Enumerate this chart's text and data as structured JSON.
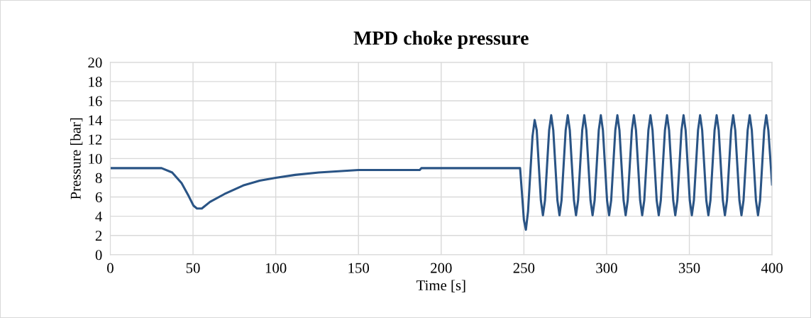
{
  "chart_data": {
    "type": "line",
    "title": "MPD choke pressure",
    "xlabel": "Time [s]",
    "ylabel": "Pressure [bar]",
    "xlim": [
      0,
      400
    ],
    "xticks": [
      0,
      50,
      100,
      150,
      200,
      250,
      300,
      350,
      400
    ],
    "ylim": [
      0,
      20
    ],
    "yticks": [
      0,
      2,
      4,
      6,
      8,
      10,
      12,
      14,
      16,
      18,
      20
    ],
    "grid": true,
    "marker": "none",
    "line_style": "solid",
    "series": [
      {
        "color": "#2a5485",
        "x": [
          0,
          31,
          37.4,
          43.1,
          47.4,
          50.3,
          52.4,
          55.3,
          60.3,
          68.9,
          80.3,
          90.3,
          100,
          111.7,
          126,
          150,
          187,
          188,
          247.7,
          249,
          250,
          251.2,
          252.5,
          253.8,
          255.2,
          256.5,
          257.75,
          259,
          260.25,
          261.5,
          262.75,
          264,
          265.25,
          266.5,
          267.75,
          269,
          270.25,
          271.5,
          272.75,
          274,
          275.25,
          276.5,
          277.75,
          279,
          280.25,
          281.5,
          282.75,
          284,
          285.25,
          286.5,
          287.75,
          289,
          290.25,
          291.5,
          292.75,
          294,
          295.25,
          296.5,
          297.75,
          299,
          300.25,
          301.5,
          302.75,
          304,
          305.25,
          306.5,
          307.75,
          309,
          310.25,
          311.5,
          312.75,
          314,
          315.25,
          316.5,
          317.75,
          319,
          320.25,
          321.5,
          322.75,
          324,
          325.25,
          326.5,
          327.75,
          329,
          330.25,
          331.5,
          332.75,
          334,
          335.25,
          336.5,
          337.75,
          339,
          340.25,
          341.5,
          342.75,
          344,
          345.25,
          346.5,
          347.75,
          349,
          350.25,
          351.5,
          352.75,
          354,
          355.25,
          356.5,
          357.75,
          359,
          360.25,
          361.5,
          362.75,
          364,
          365.25,
          366.5,
          367.75,
          369,
          370.25,
          371.5,
          372.75,
          374,
          375.25,
          376.5,
          377.75,
          379,
          380.25,
          381.5,
          382.75,
          384,
          385.25,
          386.5,
          387.75,
          389,
          390.25,
          391.5,
          392.75,
          394,
          395.25,
          396.5,
          397.75,
          400
        ],
        "values": [
          9,
          9,
          8.55,
          7.44,
          6.09,
          5.1,
          4.8,
          4.8,
          5.5,
          6.3,
          7.2,
          7.7,
          8.0,
          8.3,
          8.55,
          8.8,
          8.8,
          9.0,
          9.0,
          6.0,
          3.6,
          2.6,
          4.5,
          8.3,
          12.3,
          14.0,
          12.95,
          9.3,
          5.65,
          4.1,
          5.65,
          9.3,
          12.95,
          14.5,
          12.95,
          9.3,
          5.65,
          4.1,
          5.65,
          9.3,
          12.95,
          14.5,
          12.95,
          9.3,
          5.65,
          4.1,
          5.65,
          9.3,
          12.95,
          14.5,
          12.95,
          9.3,
          5.65,
          4.1,
          5.65,
          9.3,
          12.95,
          14.5,
          12.95,
          9.3,
          5.65,
          4.1,
          5.65,
          9.3,
          12.95,
          14.5,
          12.95,
          9.3,
          5.65,
          4.1,
          5.65,
          9.3,
          12.95,
          14.5,
          12.95,
          9.3,
          5.65,
          4.1,
          5.65,
          9.3,
          12.95,
          14.5,
          12.95,
          9.3,
          5.65,
          4.1,
          5.65,
          9.3,
          12.95,
          14.5,
          12.95,
          9.3,
          5.65,
          4.1,
          5.65,
          9.3,
          12.95,
          14.5,
          12.95,
          9.3,
          5.65,
          4.1,
          5.65,
          9.3,
          12.95,
          14.5,
          12.95,
          9.3,
          5.65,
          4.1,
          5.65,
          9.3,
          12.95,
          14.5,
          12.95,
          9.3,
          5.65,
          4.1,
          5.65,
          9.3,
          12.95,
          14.5,
          12.95,
          9.3,
          5.65,
          4.1,
          5.65,
          9.3,
          12.95,
          14.5,
          12.95,
          9.3,
          5.65,
          4.1,
          5.65,
          9.3,
          12.95,
          14.5,
          12.95,
          7.3
        ]
      }
    ]
  }
}
